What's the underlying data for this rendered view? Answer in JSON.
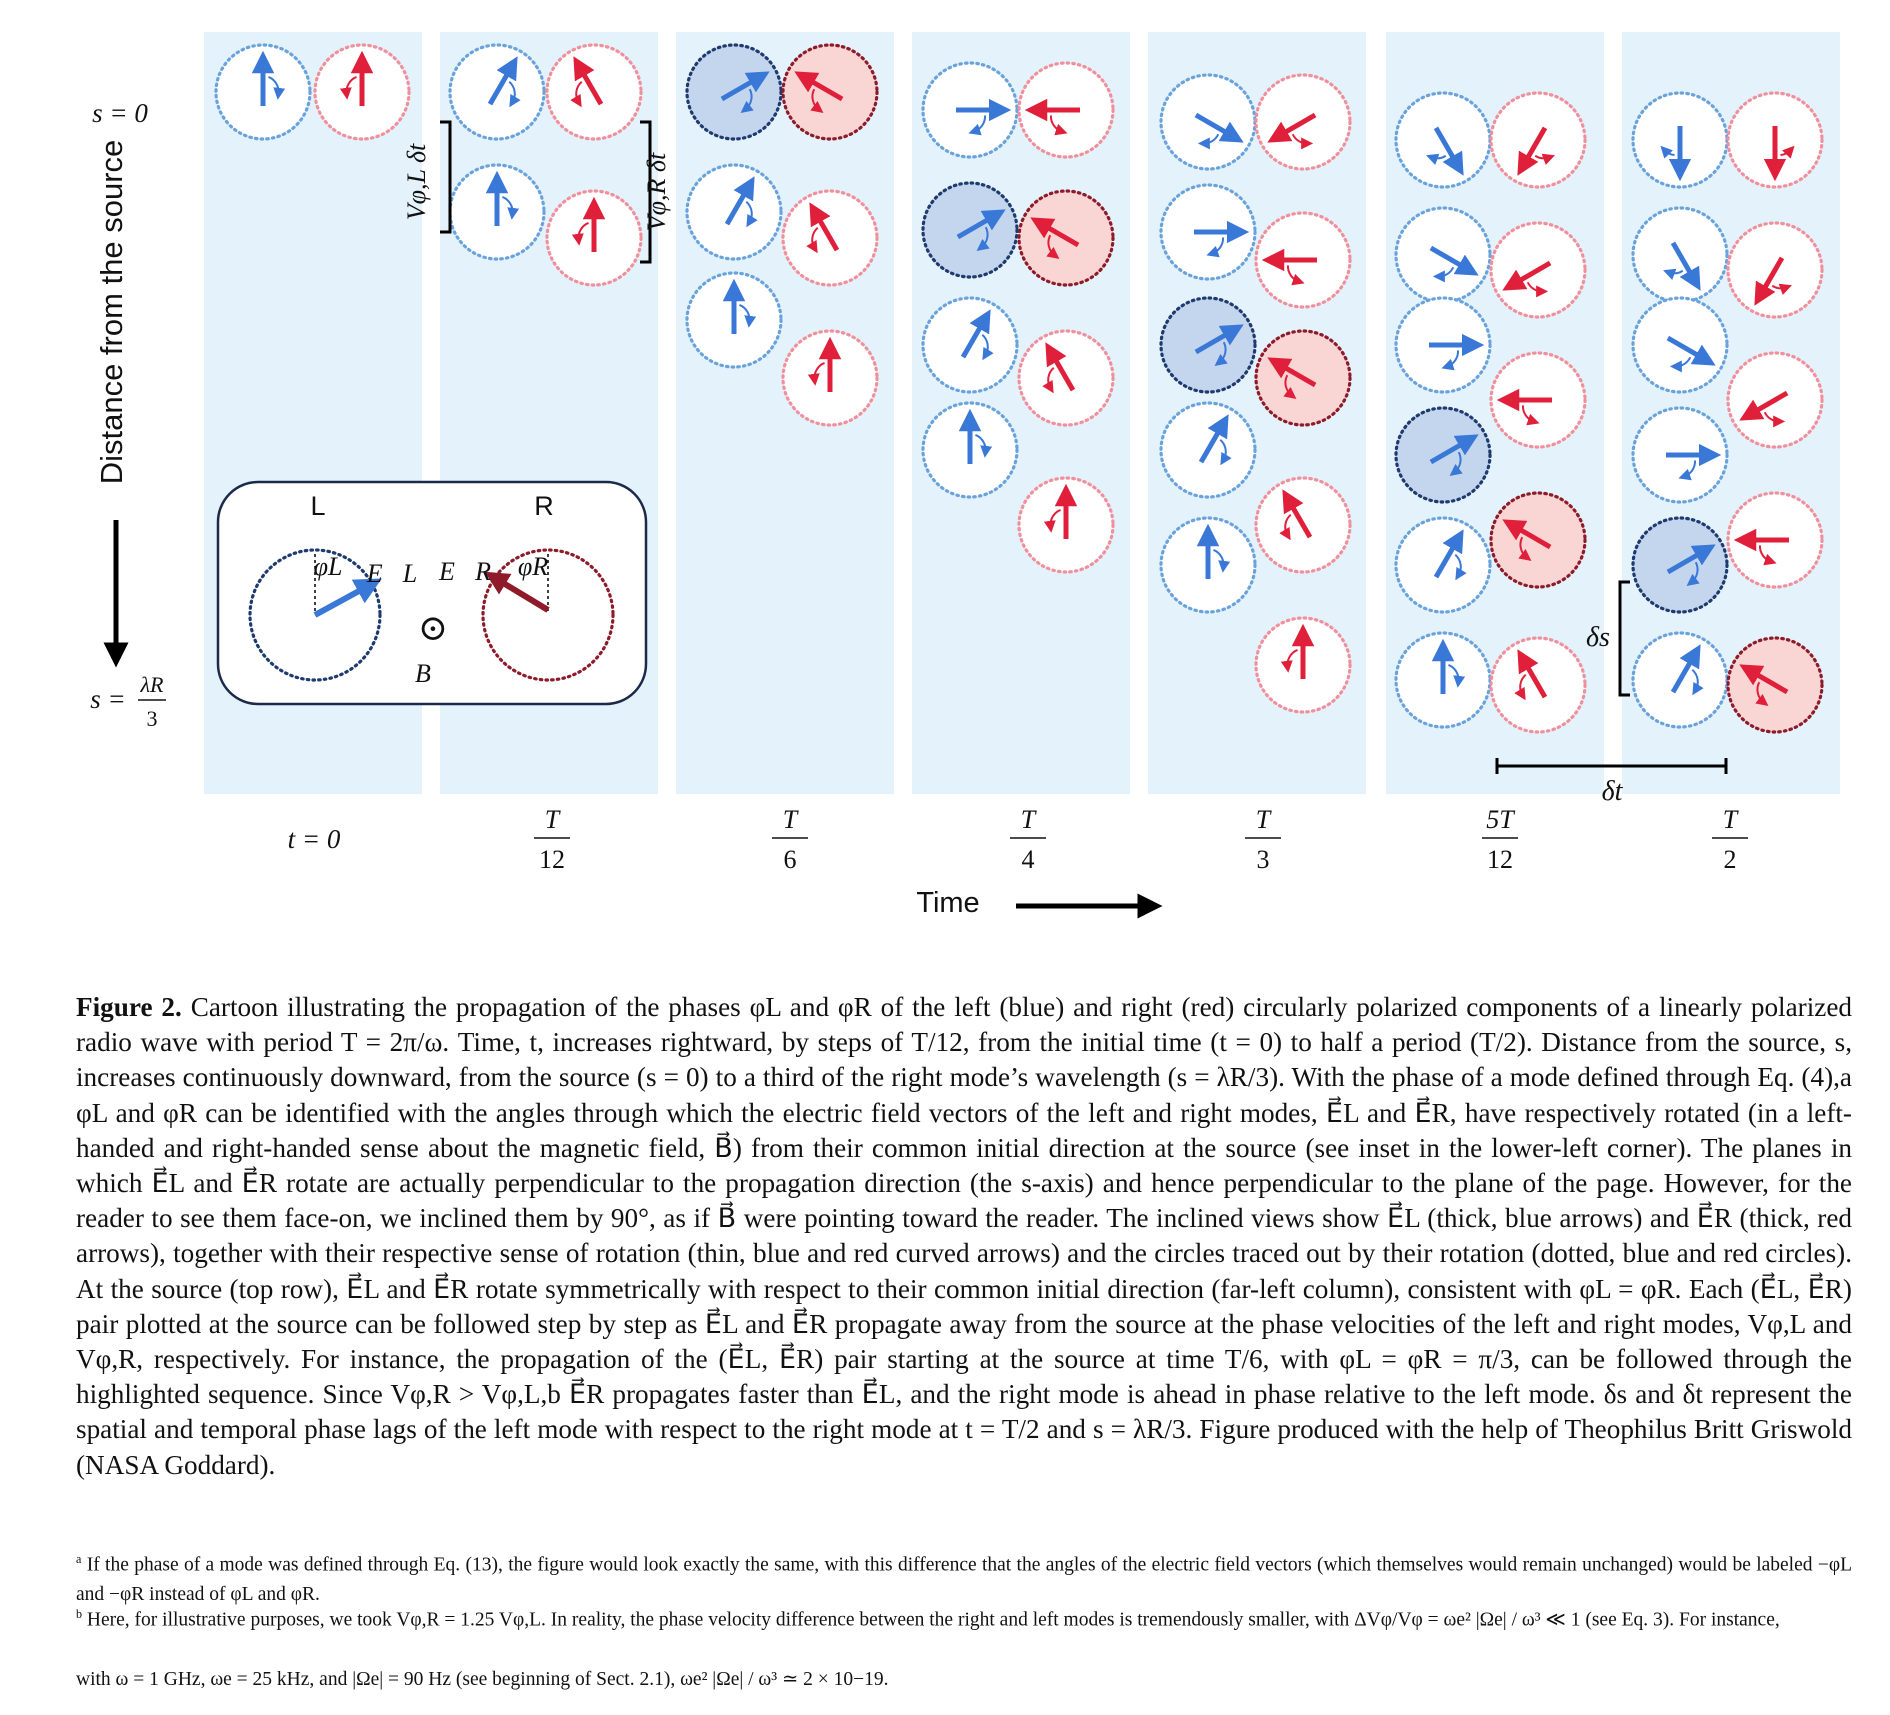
{
  "figure": {
    "s_top": "s = 0",
    "s_bottom_left": "s =",
    "s_bottom_num": "λR",
    "s_bottom_den": "3",
    "y_axis_label": "Distance from the source",
    "time_label": "Time",
    "time_ticks": [
      {
        "num": "t = 0",
        "den": ""
      },
      {
        "num": "T",
        "den": "12"
      },
      {
        "num": "T",
        "den": "6"
      },
      {
        "num": "T",
        "den": "4"
      },
      {
        "num": "T",
        "den": "3"
      },
      {
        "num": "5T",
        "den": "12"
      },
      {
        "num": "T",
        "den": "2"
      }
    ],
    "vphiL_label": "Vφ,L δt",
    "vphiR_label": "Vφ,R δt",
    "delta_s": "δs",
    "delta_t": "δt",
    "inset": {
      "L": "L",
      "R": "R",
      "phiL": "φL",
      "phiR": "φR",
      "EL": "E⃗L",
      "ER": "E⃗R",
      "B": "B⃗",
      "b_symbol": "⊙"
    },
    "colors": {
      "left": "#3a78d8",
      "right": "#e0203a",
      "panel": "#e4f2fb",
      "left_circle": "#6aa3dc",
      "right_circle": "#f0909c",
      "left_fill": "#c3d6ee",
      "right_fill": "#f9d5d3",
      "left_dark": "#1f3a6e",
      "right_dark": "#8e1a2a"
    }
  },
  "caption": {
    "label": "Figure 2.",
    "text_1": "Cartoon illustrating the propagation of the phases φL and φR of the left (blue) and right (red) circularly polarized components of a linearly polarized radio wave with period T = 2π/ω. Time, t, increases rightward, by steps of T/12, from the initial time (t = 0) to half a period (T/2). Distance from the source, s, increases continuously downward, from the source (s = 0) to a third of the right mode’s wavelength (s = λR/3). With the phase of a mode defined through Eq. (4),a φL and φR can be identified with the angles through which the electric field vectors of the left and right modes, E⃗L and E⃗R, have respectively rotated (in a left-handed and right-handed sense about the magnetic field, B⃗) from their common initial direction at the source (see inset in the lower-left corner). The planes in which E⃗L and E⃗R rotate are actually perpendicular to the propagation direction (the s-axis) and hence perpendicular to the plane of the page. However, for the reader to see them face-on, we inclined them by 90°, as if B⃗ were pointing toward the reader. The inclined views show E⃗L (thick, blue arrows) and E⃗R (thick, red arrows), together with their respective sense of rotation (thin, blue and red curved arrows) and the circles traced out by their rotation (dotted, blue and red circles). At the source (top row), E⃗L and E⃗R rotate symmetrically with respect to their common initial direction (far-left column), consistent with φL = φR. Each (E⃗L, E⃗R) pair plotted at the source can be followed step by step as E⃗L and E⃗R propagate away from the source at the phase velocities of the left and right modes, Vφ,L and Vφ,R, respectively. For instance, the propagation of the (E⃗L, E⃗R) pair starting at the source at time T/6, with φL = φR = π/3, can be followed through the highlighted sequence. Since Vφ,R > Vφ,L,b E⃗R propagates faster than E⃗L, and the right mode is ahead in phase relative to the left mode. δs and δt represent the spatial and temporal phase lags of the left mode with respect to the right mode at t = T/2 and s = λR/3. Figure produced with the help of Theophilus Britt Griswold (NASA Goddard)."
  },
  "footnotes": {
    "a_mark": "a",
    "a_text": "If the phase of a mode was defined through Eq. (13), the figure would look exactly the same, with this difference that the angles of the electric field vectors (which themselves would remain unchanged) would be labeled −φL and −φR instead of φL and φR.",
    "b_mark": "b",
    "b_text": "Here, for illustrative purposes, we took Vφ,R = 1.25 Vφ,L. In reality, the phase velocity difference between the right and left modes is tremendously smaller, with ΔVφ/Vφ = ωe² |Ωe| / ω³ ≪ 1 (see Eq. 3). For instance,",
    "b_text_2": "with ω = 1 GHz, ωe = 25 kHz, and |Ωe| = 90 Hz (see beginning of Sect. 2.1), ωe² |Ωe| / ω³ ≃ 2 × 10−19."
  }
}
